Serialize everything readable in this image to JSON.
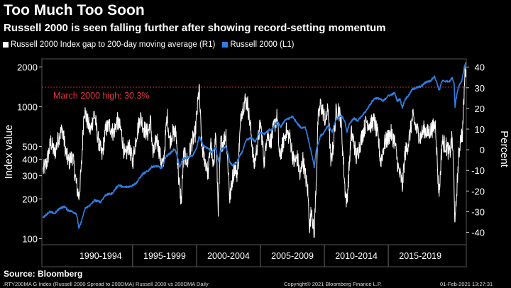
{
  "header": {
    "title": "Too Much Too Soon",
    "subtitle": "Russell 2000 is seen falling further after showing record-setting momentum"
  },
  "colors": {
    "background": "#000000",
    "gap_series": "#ffffff",
    "index_series": "#2f7de1",
    "threshold": "#e8323c"
  },
  "chart_data": {
    "type": "line",
    "x_range": [
      1987.9,
      2021.1
    ],
    "x_category_labels": [
      "1990-1994",
      "1995-1999",
      "2000-2004",
      "2005-2009",
      "2010-2014",
      "2015-2019"
    ],
    "x_category_spans": [
      [
        1990,
        1995
      ],
      [
        1995,
        2000
      ],
      [
        2000,
        2005
      ],
      [
        2005,
        2010
      ],
      [
        2010,
        2015
      ],
      [
        2015,
        2020
      ]
    ],
    "legend_position": "top-left",
    "grid": false,
    "left_axis": {
      "label": "Index value",
      "scale": "log",
      "range": [
        90,
        2300
      ],
      "ticks": [
        100,
        200,
        300,
        400,
        500,
        1000,
        2000
      ],
      "tick_labels": [
        "100",
        "200",
        "300",
        "400",
        "500",
        "1000",
        "2000"
      ]
    },
    "right_axis": {
      "label": "Percent",
      "scale": "linear",
      "range": [
        -46,
        44
      ],
      "ticks": [
        -40,
        -30,
        -20,
        -10,
        0,
        10,
        20,
        30,
        40
      ],
      "tick_labels": [
        "-40",
        "-30",
        "-20",
        "-10",
        "0",
        "10",
        "20",
        "30",
        "40"
      ]
    },
    "threshold": {
      "value": 30.3,
      "axis": "right",
      "label": "March 2000 high: 30.3%"
    },
    "series": [
      {
        "name": "Russell 2000 Index gap to 200-day moving average (R1)",
        "axis": "right",
        "points": [
          [
            1988.0,
            -10
          ],
          [
            1988.3,
            -6
          ],
          [
            1988.6,
            4
          ],
          [
            1988.9,
            -2
          ],
          [
            1989.2,
            6
          ],
          [
            1989.5,
            10
          ],
          [
            1989.8,
            -2
          ],
          [
            1990.0,
            -6
          ],
          [
            1990.3,
            -3
          ],
          [
            1990.6,
            -17
          ],
          [
            1990.8,
            -23
          ],
          [
            1991.0,
            -8
          ],
          [
            1991.2,
            20
          ],
          [
            1991.4,
            15
          ],
          [
            1991.7,
            9
          ],
          [
            1992.0,
            18
          ],
          [
            1992.3,
            5
          ],
          [
            1992.6,
            -3
          ],
          [
            1992.9,
            10
          ],
          [
            1993.2,
            12
          ],
          [
            1993.5,
            8
          ],
          [
            1993.8,
            14
          ],
          [
            1994.1,
            9
          ],
          [
            1994.4,
            -4
          ],
          [
            1994.7,
            2
          ],
          [
            1995.0,
            -6
          ],
          [
            1995.3,
            7
          ],
          [
            1995.6,
            16
          ],
          [
            1995.9,
            10
          ],
          [
            1996.2,
            8
          ],
          [
            1996.4,
            14
          ],
          [
            1996.6,
            -3
          ],
          [
            1996.9,
            6
          ],
          [
            1997.2,
            -5
          ],
          [
            1997.4,
            -8
          ],
          [
            1997.7,
            17
          ],
          [
            1997.9,
            4
          ],
          [
            1998.1,
            8
          ],
          [
            1998.4,
            8
          ],
          [
            1998.6,
            -14
          ],
          [
            1998.8,
            -25
          ],
          [
            1999.0,
            -2
          ],
          [
            1999.3,
            -6
          ],
          [
            1999.6,
            3
          ],
          [
            1999.9,
            8
          ],
          [
            2000.2,
            30
          ],
          [
            2000.4,
            2
          ],
          [
            2000.6,
            -4
          ],
          [
            2000.8,
            -8
          ],
          [
            2000.9,
            -12
          ],
          [
            2001.1,
            4
          ],
          [
            2001.3,
            -10
          ],
          [
            2001.5,
            8
          ],
          [
            2001.7,
            -28
          ],
          [
            2001.9,
            3
          ],
          [
            2002.1,
            4
          ],
          [
            2002.3,
            8
          ],
          [
            2002.5,
            -12
          ],
          [
            2002.6,
            -24
          ],
          [
            2002.8,
            -14
          ],
          [
            2003.0,
            -8
          ],
          [
            2003.2,
            -12
          ],
          [
            2003.5,
            18
          ],
          [
            2003.8,
            24
          ],
          [
            2004.0,
            22
          ],
          [
            2004.3,
            6
          ],
          [
            2004.5,
            -8
          ],
          [
            2004.8,
            4
          ],
          [
            2005.0,
            13
          ],
          [
            2005.3,
            -6
          ],
          [
            2005.5,
            8
          ],
          [
            2005.8,
            4
          ],
          [
            2006.1,
            12
          ],
          [
            2006.3,
            16
          ],
          [
            2006.5,
            -4
          ],
          [
            2006.8,
            4
          ],
          [
            2007.0,
            9
          ],
          [
            2007.3,
            6
          ],
          [
            2007.6,
            -6
          ],
          [
            2007.9,
            -4
          ],
          [
            2008.1,
            -14
          ],
          [
            2008.3,
            -4
          ],
          [
            2008.5,
            -12
          ],
          [
            2008.7,
            -20
          ],
          [
            2008.85,
            -38
          ],
          [
            2009.0,
            -28
          ],
          [
            2009.2,
            -42
          ],
          [
            2009.4,
            -8
          ],
          [
            2009.5,
            14
          ],
          [
            2009.7,
            22
          ],
          [
            2009.9,
            18
          ],
          [
            2010.1,
            14
          ],
          [
            2010.3,
            20
          ],
          [
            2010.5,
            -6
          ],
          [
            2010.7,
            2
          ],
          [
            2010.9,
            18
          ],
          [
            2011.1,
            20
          ],
          [
            2011.3,
            14
          ],
          [
            2011.6,
            -18
          ],
          [
            2011.75,
            -26
          ],
          [
            2011.9,
            -12
          ],
          [
            2012.1,
            8
          ],
          [
            2012.3,
            4
          ],
          [
            2012.5,
            -4
          ],
          [
            2012.8,
            3
          ],
          [
            2013.0,
            8
          ],
          [
            2013.3,
            14
          ],
          [
            2013.6,
            12
          ],
          [
            2013.9,
            14
          ],
          [
            2014.2,
            6
          ],
          [
            2014.4,
            -6
          ],
          [
            2014.7,
            3
          ],
          [
            2014.9,
            5
          ],
          [
            2015.2,
            8
          ],
          [
            2015.5,
            4
          ],
          [
            2015.8,
            -10
          ],
          [
            2016.0,
            -14
          ],
          [
            2016.1,
            -18
          ],
          [
            2016.3,
            -2
          ],
          [
            2016.6,
            4
          ],
          [
            2016.9,
            16
          ],
          [
            2017.2,
            10
          ],
          [
            2017.5,
            6
          ],
          [
            2017.8,
            10
          ],
          [
            2018.1,
            8
          ],
          [
            2018.4,
            10
          ],
          [
            2018.7,
            12
          ],
          [
            2018.9,
            -16
          ],
          [
            2019.0,
            -20
          ],
          [
            2019.2,
            4
          ],
          [
            2019.5,
            2
          ],
          [
            2019.8,
            -2
          ],
          [
            2020.0,
            6
          ],
          [
            2020.15,
            -18
          ],
          [
            2020.22,
            -38
          ],
          [
            2020.35,
            -20
          ],
          [
            2020.5,
            -4
          ],
          [
            2020.65,
            6
          ],
          [
            2020.8,
            8
          ],
          [
            2020.9,
            22
          ],
          [
            2021.0,
            38
          ],
          [
            2021.07,
            39
          ]
        ]
      },
      {
        "name": "Russell 2000 (L1)",
        "axis": "left",
        "points": [
          [
            1988.0,
            145
          ],
          [
            1988.5,
            160
          ],
          [
            1988.9,
            155
          ],
          [
            1989.3,
            170
          ],
          [
            1989.7,
            175
          ],
          [
            1989.9,
            165
          ],
          [
            1990.3,
            160
          ],
          [
            1990.6,
            155
          ],
          [
            1990.8,
            120
          ],
          [
            1990.95,
            130
          ],
          [
            1991.3,
            170
          ],
          [
            1991.7,
            180
          ],
          [
            1992.0,
            195
          ],
          [
            1992.5,
            190
          ],
          [
            1992.9,
            215
          ],
          [
            1993.4,
            220
          ],
          [
            1993.9,
            255
          ],
          [
            1994.3,
            245
          ],
          [
            1994.9,
            250
          ],
          [
            1995.3,
            265
          ],
          [
            1995.8,
            310
          ],
          [
            1996.2,
            325
          ],
          [
            1996.5,
            350
          ],
          [
            1996.9,
            355
          ],
          [
            1997.3,
            340
          ],
          [
            1997.6,
            420
          ],
          [
            1997.9,
            440
          ],
          [
            1998.3,
            480
          ],
          [
            1998.7,
            345
          ],
          [
            1998.9,
            400
          ],
          [
            1999.3,
            410
          ],
          [
            1999.7,
            430
          ],
          [
            2000.0,
            480
          ],
          [
            2000.2,
            600
          ],
          [
            2000.5,
            510
          ],
          [
            2000.9,
            480
          ],
          [
            2001.2,
            450
          ],
          [
            2001.5,
            490
          ],
          [
            2001.7,
            380
          ],
          [
            2001.9,
            470
          ],
          [
            2002.3,
            500
          ],
          [
            2002.6,
            380
          ],
          [
            2002.8,
            360
          ],
          [
            2003.1,
            370
          ],
          [
            2003.6,
            460
          ],
          [
            2003.9,
            560
          ],
          [
            2004.3,
            580
          ],
          [
            2004.6,
            540
          ],
          [
            2004.9,
            640
          ],
          [
            2005.3,
            620
          ],
          [
            2005.7,
            670
          ],
          [
            2005.9,
            670
          ],
          [
            2006.3,
            770
          ],
          [
            2006.6,
            700
          ],
          [
            2006.9,
            790
          ],
          [
            2007.3,
            820
          ],
          [
            2007.5,
            840
          ],
          [
            2007.9,
            740
          ],
          [
            2008.2,
            690
          ],
          [
            2008.5,
            700
          ],
          [
            2008.7,
            590
          ],
          [
            2008.9,
            480
          ],
          [
            2009.2,
            350
          ],
          [
            2009.4,
            480
          ],
          [
            2009.7,
            600
          ],
          [
            2009.95,
            630
          ],
          [
            2010.3,
            720
          ],
          [
            2010.6,
            640
          ],
          [
            2010.9,
            790
          ],
          [
            2011.3,
            860
          ],
          [
            2011.6,
            780
          ],
          [
            2011.75,
            640
          ],
          [
            2011.95,
            740
          ],
          [
            2012.3,
            820
          ],
          [
            2012.6,
            780
          ],
          [
            2012.95,
            850
          ],
          [
            2013.3,
            940
          ],
          [
            2013.6,
            1050
          ],
          [
            2013.95,
            1160
          ],
          [
            2014.3,
            1150
          ],
          [
            2014.6,
            1100
          ],
          [
            2014.95,
            1200
          ],
          [
            2015.3,
            1240
          ],
          [
            2015.5,
            1270
          ],
          [
            2015.7,
            1100
          ],
          [
            2015.9,
            1150
          ],
          [
            2016.1,
            980
          ],
          [
            2016.3,
            1130
          ],
          [
            2016.6,
            1220
          ],
          [
            2016.9,
            1360
          ],
          [
            2017.3,
            1400
          ],
          [
            2017.6,
            1430
          ],
          [
            2017.95,
            1540
          ],
          [
            2018.3,
            1560
          ],
          [
            2018.6,
            1700
          ],
          [
            2018.8,
            1520
          ],
          [
            2018.98,
            1320
          ],
          [
            2019.2,
            1560
          ],
          [
            2019.5,
            1560
          ],
          [
            2019.8,
            1550
          ],
          [
            2020.0,
            1660
          ],
          [
            2020.15,
            1470
          ],
          [
            2020.22,
            1000
          ],
          [
            2020.4,
            1300
          ],
          [
            2020.6,
            1500
          ],
          [
            2020.75,
            1550
          ],
          [
            2020.85,
            1750
          ],
          [
            2020.95,
            2000
          ],
          [
            2021.07,
            2170
          ]
        ]
      }
    ]
  },
  "source": "Source: Bloomberg",
  "footer": {
    "left": ".RTY200MA G Index (Russell 2000 Spread to 200DMA) Russell 2000 vs 200DMA  Daily",
    "center": "Copyright® 2021 Bloomberg Finance L.P.",
    "right": "01-Feb-2021 13:27:31"
  }
}
